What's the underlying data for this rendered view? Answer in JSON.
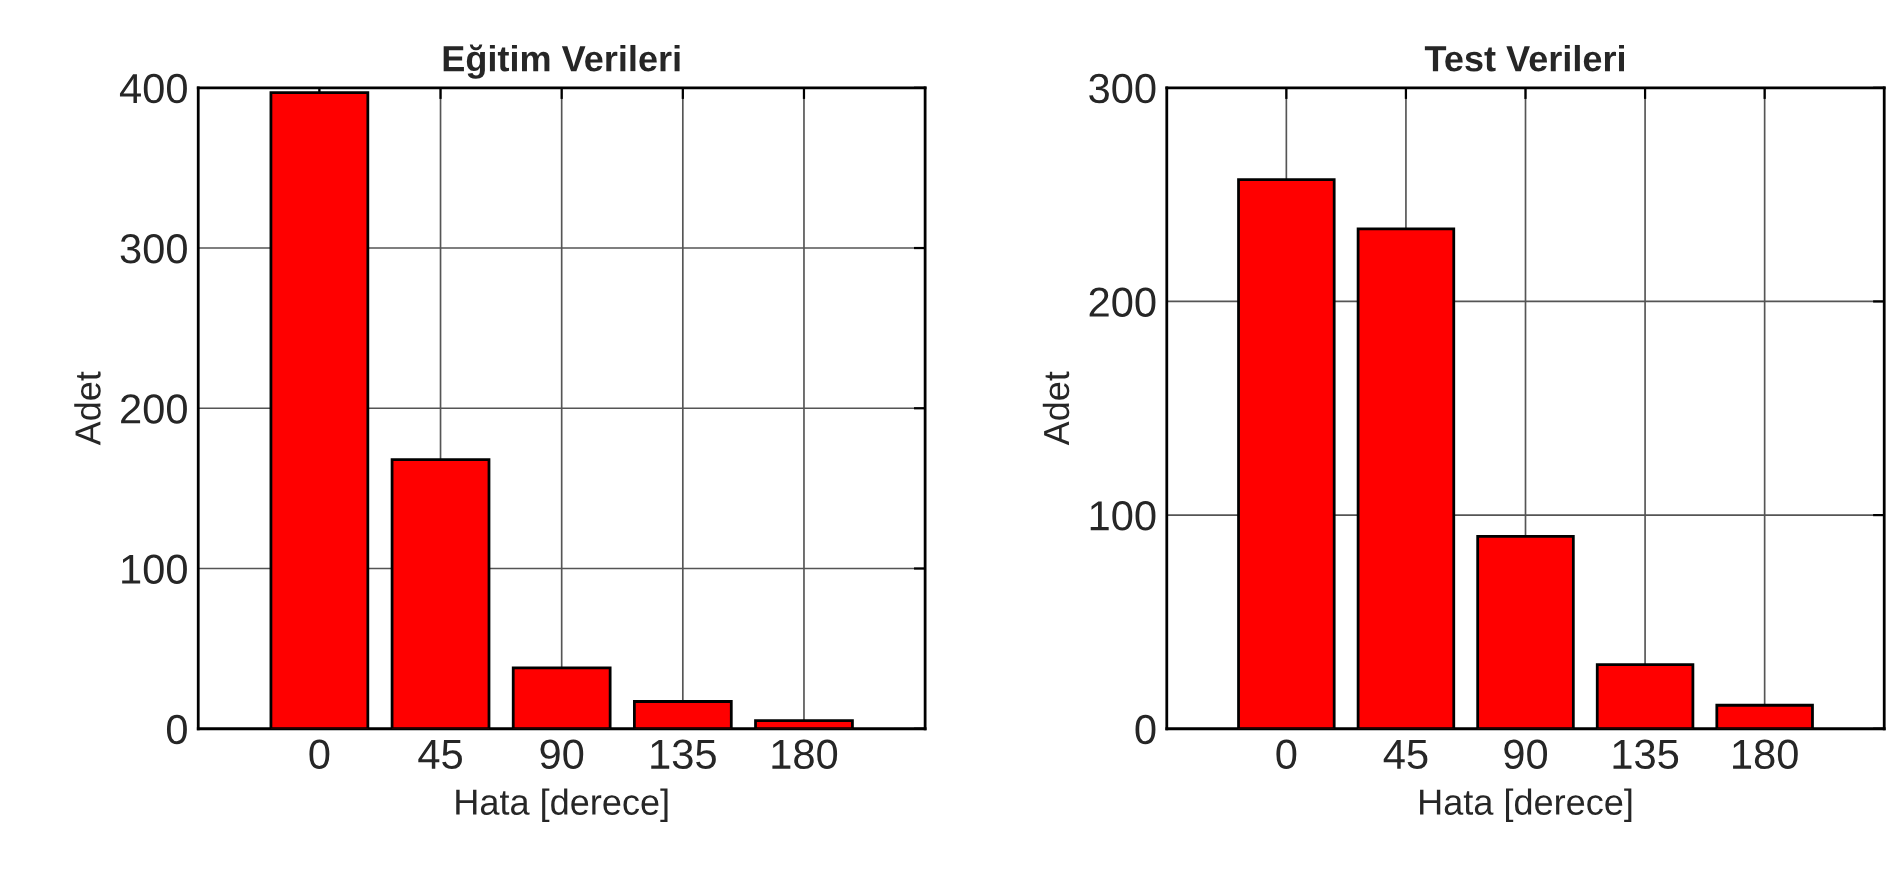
{
  "chart_data": [
    {
      "type": "bar",
      "title": "Eğitim Verileri",
      "xlabel": "Hata [derece]",
      "ylabel": "Adet",
      "x": [
        0,
        45,
        90,
        135,
        180
      ],
      "values": [
        397,
        168,
        38,
        17,
        5
      ],
      "color": "#ff0000",
      "xlim": [
        -45,
        225
      ],
      "xticks": [
        0,
        45,
        90,
        135,
        180
      ],
      "ylim": [
        0,
        400
      ],
      "yticks": [
        0,
        100,
        200,
        300,
        400
      ],
      "grid": true
    },
    {
      "type": "bar",
      "title": "Test Verileri",
      "xlabel": "Hata [derece]",
      "ylabel": "Adet",
      "x": [
        0,
        45,
        90,
        135,
        180
      ],
      "values": [
        257,
        234,
        90,
        30,
        11
      ],
      "color": "#ff0000",
      "xlim": [
        -45,
        225
      ],
      "xticks": [
        0,
        45,
        90,
        135,
        180
      ],
      "ylim": [
        0,
        300
      ],
      "yticks": [
        0,
        100,
        200,
        300
      ],
      "grid": true
    }
  ]
}
